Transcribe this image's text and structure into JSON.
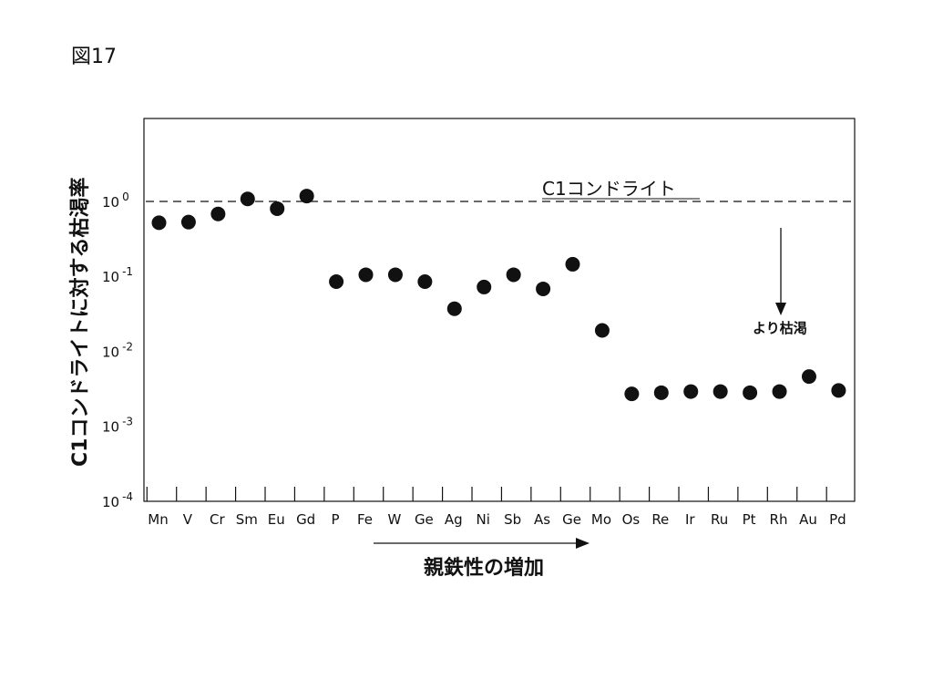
{
  "figure_label": "図17",
  "chart_data": {
    "type": "scatter",
    "title": "",
    "xlabel": "",
    "ylabel": "C1コンドライトに対する枯渇率",
    "y_scale": "log",
    "ylim": [
      0.0001,
      10
    ],
    "y_ticks": [
      {
        "value": 1,
        "base": "10",
        "exp": "0"
      },
      {
        "value": 0.1,
        "base": "10",
        "exp": "-1"
      },
      {
        "value": 0.01,
        "base": "10",
        "exp": "-2"
      },
      {
        "value": 0.001,
        "base": "10",
        "exp": "-3"
      },
      {
        "value": 0.0001,
        "base": "10",
        "exp": "-4"
      }
    ],
    "categories": [
      "Mn",
      "V",
      "Cr",
      "Sm",
      "Eu",
      "Gd",
      "P",
      "Fe",
      "W",
      "Ge",
      "Ag",
      "Ni",
      "Sb",
      "As",
      "Ge",
      "Mo",
      "Os",
      "Re",
      "Ir",
      "Ru",
      "Pt",
      "Rh",
      "Au",
      "Pd"
    ],
    "values": [
      0.52,
      0.53,
      0.68,
      1.08,
      0.8,
      1.18,
      0.085,
      0.105,
      0.105,
      0.085,
      0.037,
      0.072,
      0.105,
      0.068,
      0.145,
      0.019,
      0.0027,
      0.0028,
      0.0029,
      0.0029,
      0.0028,
      0.0029,
      0.0046,
      0.003
    ],
    "reference_line": {
      "value": 1,
      "label": "C1コンドライト",
      "style": "dashed"
    },
    "annotations": {
      "depletion": "より枯渇",
      "trend": "親鉄性の増加"
    },
    "grid": false,
    "legend": "none"
  }
}
